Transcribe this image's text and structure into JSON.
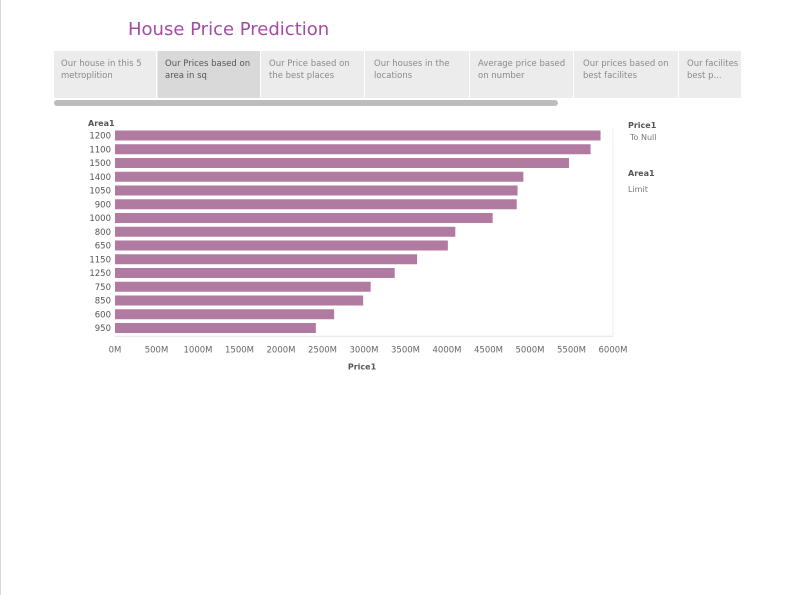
{
  "title": "House Price Prediction",
  "tabs": [
    {
      "label": "Our house in this 5 metroplition",
      "active": false
    },
    {
      "label": "Our Prices based on area in sq",
      "active": true
    },
    {
      "label": "Our Price based on the best places",
      "active": false
    },
    {
      "label": "Our houses in the locations",
      "active": false
    },
    {
      "label": "Average price based on number",
      "active": false
    },
    {
      "label": "Our prices based on best  facilites",
      "active": false
    },
    {
      "label": "Our facilites in the best p...",
      "active": false
    }
  ],
  "legend": {
    "price_title": "Price1",
    "price_value": "To Null",
    "area_title": "Area1",
    "area_value": "Limit"
  },
  "colors": {
    "bar": "#b07aa1",
    "title": "#a54ba4"
  },
  "chart_data": {
    "type": "bar",
    "orientation": "horizontal",
    "categories_label": "Area1",
    "categories": [
      "1200",
      "1100",
      "1500",
      "1400",
      "1050",
      "900",
      "1000",
      "800",
      "650",
      "1150",
      "1250",
      "750",
      "850",
      "600",
      "950"
    ],
    "values": [
      5850,
      5730,
      5470,
      4920,
      4850,
      4840,
      4550,
      4100,
      4010,
      3640,
      3370,
      3080,
      2990,
      2640,
      2420
    ],
    "xlabel": "Price1",
    "xticks": [
      "0M",
      "500M",
      "1000M",
      "1500M",
      "2000M",
      "2500M",
      "3000M",
      "3500M",
      "4000M",
      "4500M",
      "5000M",
      "5500M",
      "6000M"
    ],
    "xlim": [
      0,
      6000
    ],
    "grid": "vertical"
  }
}
